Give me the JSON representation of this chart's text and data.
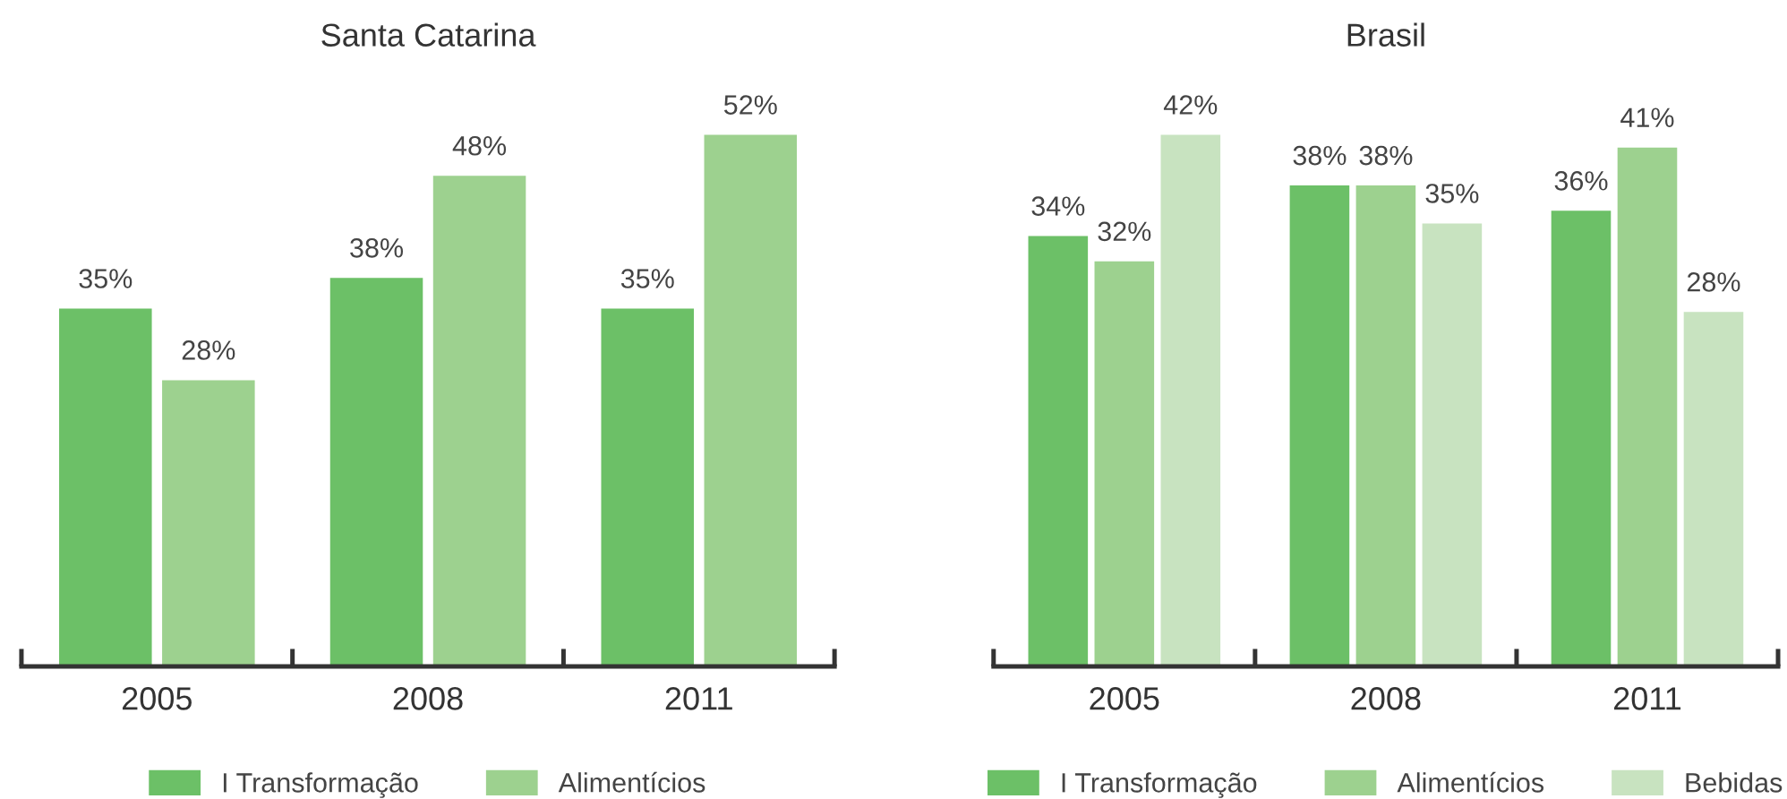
{
  "chart_data": [
    {
      "type": "bar",
      "title": "Santa Catarina",
      "categories": [
        "2005",
        "2008",
        "2011"
      ],
      "legend": "bottom",
      "series": [
        {
          "name": "I Transformação",
          "color": "#6cc067",
          "values": [
            35,
            38,
            35
          ],
          "value_labels": [
            "35%",
            "38%",
            "35%"
          ]
        },
        {
          "name": "Alimentícios",
          "color": "#9dd18f",
          "values": [
            28,
            48,
            52
          ],
          "value_labels": [
            "28%",
            "48%",
            "52%"
          ]
        }
      ]
    },
    {
      "type": "bar",
      "title": "Brasil",
      "categories": [
        "2005",
        "2008",
        "2011"
      ],
      "legend": "bottom",
      "series": [
        {
          "name": "I Transformação",
          "color": "#6cc067",
          "values": [
            34,
            38,
            36
          ],
          "value_labels": [
            "34%",
            "38%",
            "36%"
          ]
        },
        {
          "name": "Alimentícios",
          "color": "#9dd18f",
          "values": [
            32,
            38,
            41
          ],
          "value_labels": [
            "32%",
            "38%",
            "41%"
          ]
        },
        {
          "name": "Bebidas",
          "color": "#c8e3c0",
          "values": [
            42,
            35,
            28
          ],
          "value_labels": [
            "42%",
            "35%",
            "28%"
          ]
        }
      ]
    }
  ]
}
